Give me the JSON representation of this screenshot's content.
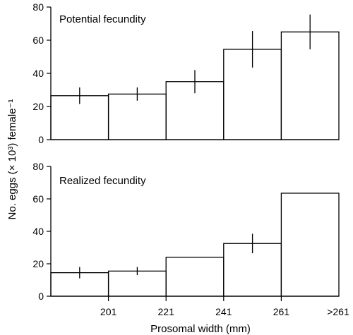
{
  "ylabel": "No. eggs (× 10³) female⁻¹",
  "xlabel": "Prosomal width (mm)",
  "x_tick_labels": [
    "201",
    "221",
    "241",
    "261",
    ">261"
  ],
  "chart_data": [
    {
      "type": "bar",
      "title": "Potential fecundity",
      "categories": [
        "<201",
        "201-221",
        "221-241",
        "241-261",
        ">261"
      ],
      "values": [
        26.5,
        27.5,
        35,
        54.5,
        65
      ],
      "errors": [
        5,
        4,
        7,
        11,
        10.5
      ],
      "ylim": [
        0,
        80
      ],
      "yticks": [
        0,
        20,
        40,
        60,
        80
      ],
      "grid": false
    },
    {
      "type": "bar",
      "title": "Realized fecundity",
      "categories": [
        "<201",
        "201-221",
        "221-241",
        "241-261",
        ">261"
      ],
      "values": [
        14.5,
        15.5,
        24,
        32.5,
        63.5
      ],
      "errors": [
        3.5,
        2.5,
        0,
        6,
        0
      ],
      "ylim": [
        0,
        80
      ],
      "yticks": [
        0,
        20,
        40,
        60,
        80
      ],
      "grid": false
    }
  ]
}
